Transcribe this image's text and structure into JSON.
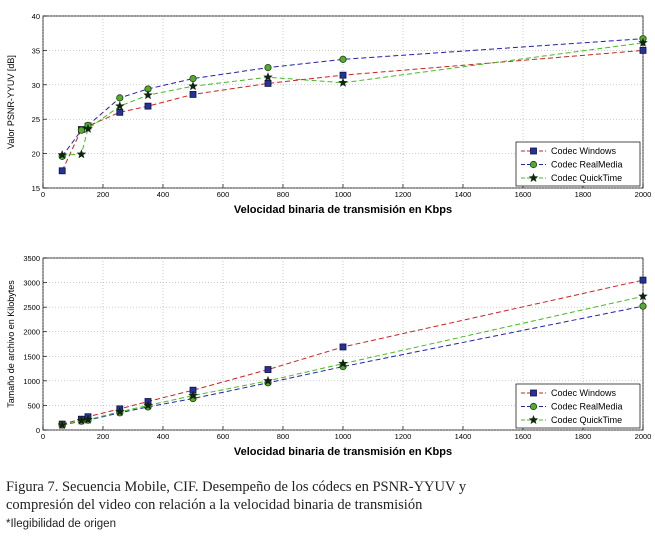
{
  "chart_data": [
    {
      "type": "line",
      "xlabel": "Velocidad binaria de transmisión en Kbps",
      "ylabel": "Valor PSNR-YYUV [dB]",
      "xlim": [
        0,
        2000
      ],
      "ylim": [
        15,
        40
      ],
      "xticks": [
        0,
        200,
        400,
        600,
        800,
        1000,
        1200,
        1400,
        1600,
        1800,
        2000
      ],
      "yticks": [
        15,
        20,
        25,
        30,
        35,
        40
      ],
      "grid": true,
      "legend_position": "bottom-right",
      "series": [
        {
          "name": "Codec Windows",
          "color": "#cc2222",
          "marker": "square",
          "x": [
            64,
            128,
            150,
            256,
            350,
            500,
            750,
            1000,
            2000
          ],
          "y": [
            17.5,
            23.5,
            24.0,
            26.0,
            26.9,
            28.6,
            30.2,
            31.4,
            35.0
          ]
        },
        {
          "name": "Codec RealMedia",
          "color": "#2222aa",
          "marker": "circle",
          "x": [
            64,
            128,
            150,
            256,
            350,
            500,
            750,
            1000,
            2000
          ],
          "y": [
            19.6,
            23.4,
            24.1,
            28.1,
            29.4,
            30.9,
            32.5,
            33.7,
            36.7
          ]
        },
        {
          "name": "Codec QuickTime",
          "color": "#44bb22",
          "marker": "star",
          "x": [
            64,
            128,
            150,
            256,
            350,
            500,
            750,
            1000,
            2000
          ],
          "y": [
            19.8,
            19.9,
            23.6,
            26.9,
            28.5,
            29.8,
            31.1,
            30.3,
            36.1
          ]
        }
      ]
    },
    {
      "type": "line",
      "xlabel": "Velocidad binaria de transmisión en Kbps",
      "ylabel": "Tamaño de archivo en Kilobytes",
      "xlim": [
        0,
        2000
      ],
      "ylim": [
        0,
        3500
      ],
      "xticks": [
        0,
        200,
        400,
        600,
        800,
        1000,
        1200,
        1400,
        1600,
        1800,
        2000
      ],
      "yticks": [
        0,
        500,
        1000,
        1500,
        2000,
        2500,
        3000,
        3500
      ],
      "grid": true,
      "legend_position": "bottom-right",
      "series": [
        {
          "name": "Codec Windows",
          "color": "#cc2222",
          "marker": "square",
          "x": [
            64,
            128,
            150,
            256,
            350,
            500,
            750,
            1000,
            2000
          ],
          "y": [
            120,
            220,
            270,
            430,
            580,
            810,
            1230,
            1690,
            3050
          ]
        },
        {
          "name": "Codec RealMedia",
          "color": "#2222aa",
          "marker": "circle",
          "x": [
            64,
            128,
            150,
            256,
            350,
            500,
            750,
            1000,
            2000
          ],
          "y": [
            100,
            180,
            200,
            350,
            470,
            640,
            960,
            1290,
            2520
          ]
        },
        {
          "name": "Codec QuickTime",
          "color": "#44bb22",
          "marker": "star",
          "x": [
            64,
            128,
            150,
            256,
            350,
            500,
            750,
            1000,
            2000
          ],
          "y": [
            100,
            190,
            210,
            370,
            500,
            700,
            1000,
            1350,
            2720
          ]
        }
      ]
    }
  ],
  "caption": {
    "line1": "Figura 7. Secuencia Mobile, CIF. Desempeño de los códecs en PSNR-YYUV y",
    "line2": "compresión del video con relación a la velocidad binaria de transmisión"
  },
  "note": "*Ilegibilidad de origen"
}
